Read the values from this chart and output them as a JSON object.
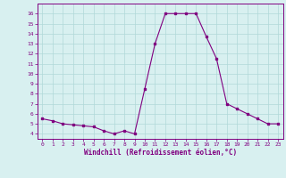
{
  "hours": [
    0,
    1,
    2,
    3,
    4,
    5,
    6,
    7,
    8,
    9,
    10,
    11,
    12,
    13,
    14,
    15,
    16,
    17,
    18,
    19,
    20,
    21,
    22,
    23
  ],
  "values": [
    5.5,
    5.3,
    5.0,
    4.9,
    4.8,
    4.7,
    4.3,
    4.0,
    4.3,
    4.0,
    8.5,
    13.0,
    16.0,
    16.0,
    16.0,
    16.0,
    13.7,
    11.5,
    7.0,
    6.5,
    6.0,
    5.5,
    5.0,
    5.0
  ],
  "line_color": "#800080",
  "marker": "s",
  "marker_size": 1.8,
  "background_color": "#d8f0f0",
  "grid_color": "#b0d8d8",
  "xlabel": "Windchill (Refroidissement éolien,°C)",
  "ylim": [
    3.5,
    17.0
  ],
  "xlim": [
    -0.5,
    23.5
  ],
  "yticks": [
    4,
    5,
    6,
    7,
    8,
    9,
    10,
    11,
    12,
    13,
    14,
    15,
    16
  ],
  "xticks": [
    0,
    1,
    2,
    3,
    4,
    5,
    6,
    7,
    8,
    9,
    10,
    11,
    12,
    13,
    14,
    15,
    16,
    17,
    18,
    19,
    20,
    21,
    22,
    23
  ],
  "tick_fontsize": 4.5,
  "xlabel_fontsize": 5.5,
  "line_width": 0.8,
  "spine_color": "#800080"
}
